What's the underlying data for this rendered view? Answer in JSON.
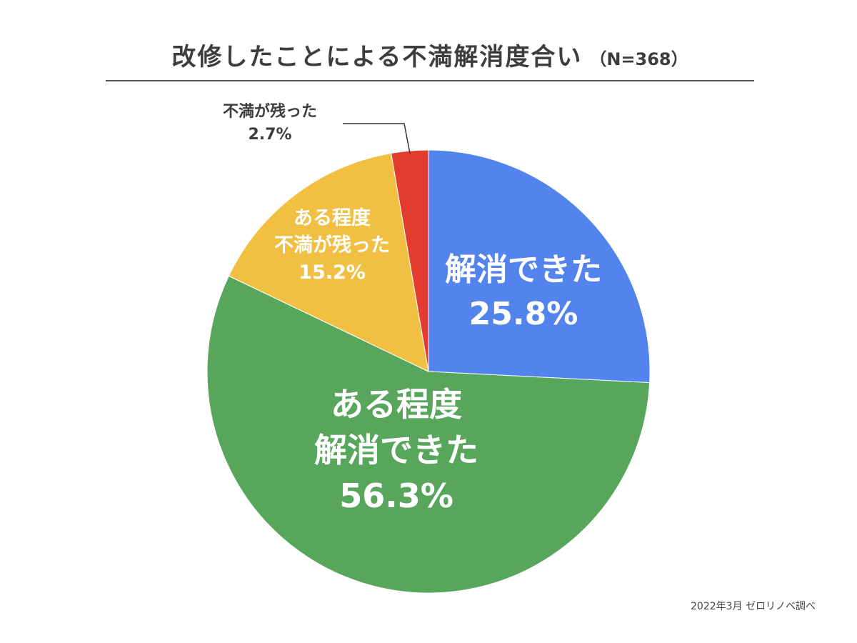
{
  "header": {
    "title": "改修したことによる不満解消度合い",
    "sample_size": "（N=368）"
  },
  "footer": {
    "credit": "2022年3月 ゼロリノベ調べ"
  },
  "chart_data": {
    "type": "pie",
    "title": "改修したことによる不満解消度合い",
    "start_angle_deg": 0,
    "direction": "clockwise",
    "slices": [
      {
        "label_lines": [
          "解消できた",
          "25.8%"
        ],
        "value": 25.8,
        "color": "#5383EC",
        "label_color": "#ffffff",
        "label_size": "large"
      },
      {
        "label_lines": [
          "ある程度",
          "解消できた",
          "56.3%"
        ],
        "value": 56.3,
        "color": "#58A65C",
        "label_color": "#ffffff",
        "label_size": "large"
      },
      {
        "label_lines": [
          "ある程度",
          "不満が残った",
          "15.2%"
        ],
        "value": 15.2,
        "color": "#F1BF42",
        "label_color": "#ffffff",
        "label_size": "medium"
      },
      {
        "label_lines": [
          "不満が残った",
          "2.7%"
        ],
        "value": 2.7,
        "color": "#E33B2E",
        "label_color": "#3d3d3d",
        "label_size": "small",
        "label_outside": true
      }
    ]
  }
}
